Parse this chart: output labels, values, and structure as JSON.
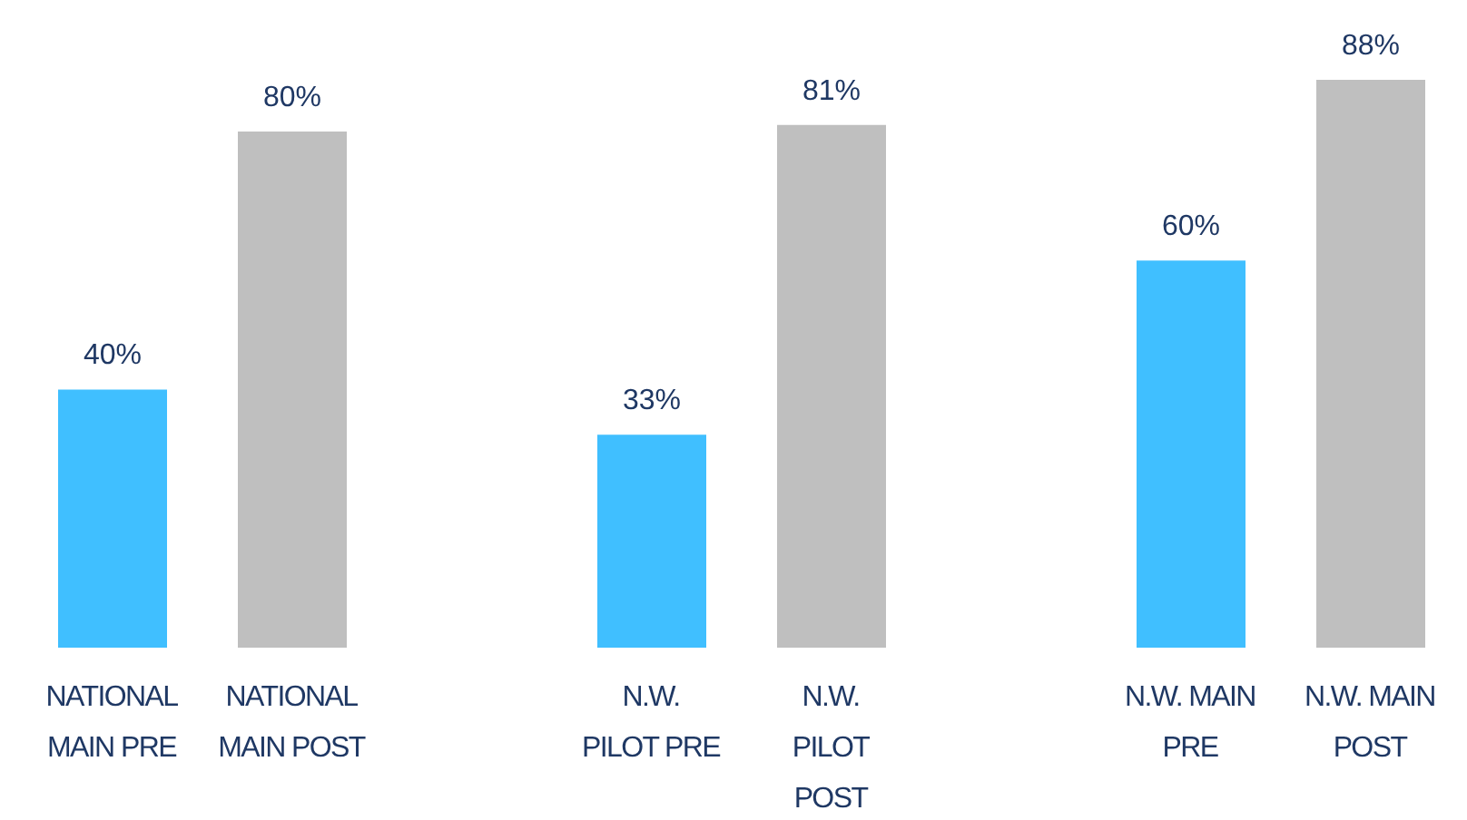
{
  "chart_data": {
    "type": "bar",
    "categories": [
      "NATIONAL MAIN PRE",
      "NATIONAL MAIN POST",
      null,
      "N.W. PILOT PRE",
      "N.W. PILOT POST",
      null,
      "N.W. MAIN PRE",
      "N.W. MAIN POST"
    ],
    "values": [
      40,
      80,
      null,
      33,
      81,
      null,
      60,
      88
    ],
    "colors": [
      "#40bfff",
      "#bfbfbf",
      null,
      "#40bfff",
      "#bfbfbf",
      null,
      "#40bfff",
      "#bfbfbf"
    ],
    "value_labels": [
      "40%",
      "80%",
      null,
      "33%",
      "81%",
      null,
      "60%",
      "88%"
    ],
    "grid": false,
    "legend": false
  }
}
